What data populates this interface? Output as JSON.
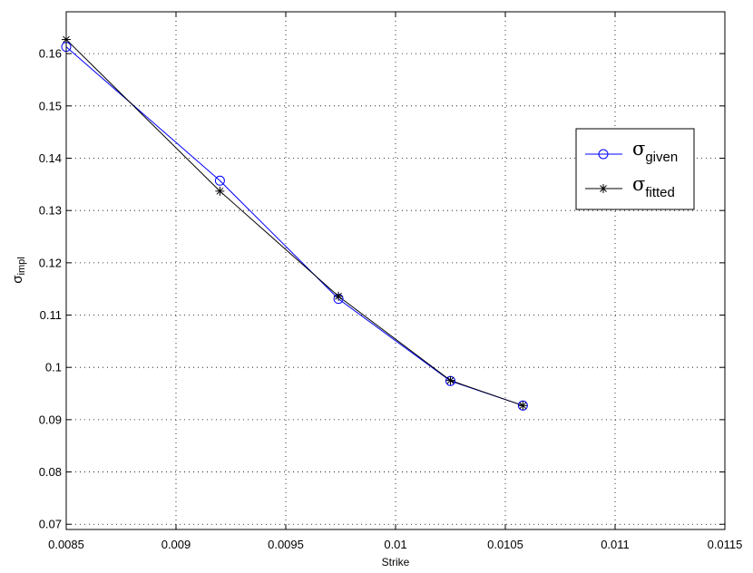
{
  "chart_data": {
    "type": "line",
    "title": "",
    "xlabel": "Strike",
    "ylabel": {
      "symbol": "σ",
      "subscript": "impl"
    },
    "xlim": [
      0.0085,
      0.0115
    ],
    "ylim": [
      0.069,
      0.168
    ],
    "x_ticks": [
      0.0085,
      0.009,
      0.0095,
      0.01,
      0.0105,
      0.011,
      0.0115
    ],
    "x_tick_labels": [
      "0.0085",
      "0.009",
      "0.0095",
      "0.01",
      "0.0105",
      "0.011",
      "0.0115"
    ],
    "y_ticks": [
      0.07,
      0.08,
      0.09,
      0.1,
      0.11,
      0.12,
      0.13,
      0.14,
      0.15,
      0.16
    ],
    "y_tick_labels": [
      "0.07",
      "0.08",
      "0.09",
      "0.1",
      "0.11",
      "0.12",
      "0.13",
      "0.14",
      "0.15",
      "0.16"
    ],
    "grid": true,
    "legend_position": "right",
    "series": [
      {
        "name": {
          "symbol": "σ",
          "subscript": "given"
        },
        "color": "#0000ff",
        "marker": "circle",
        "x": [
          0.0085,
          0.0092,
          0.00974,
          0.01025,
          0.01058
        ],
        "y": [
          0.1613,
          0.1357,
          0.1131,
          0.0974,
          0.0927
        ]
      },
      {
        "name": {
          "symbol": "σ",
          "subscript": "fitted"
        },
        "color": "#000000",
        "marker": "asterisk",
        "x": [
          0.0085,
          0.0092,
          0.00974,
          0.01025,
          0.01058
        ],
        "y": [
          0.1627,
          0.1337,
          0.1136,
          0.0975,
          0.0927
        ]
      }
    ]
  }
}
